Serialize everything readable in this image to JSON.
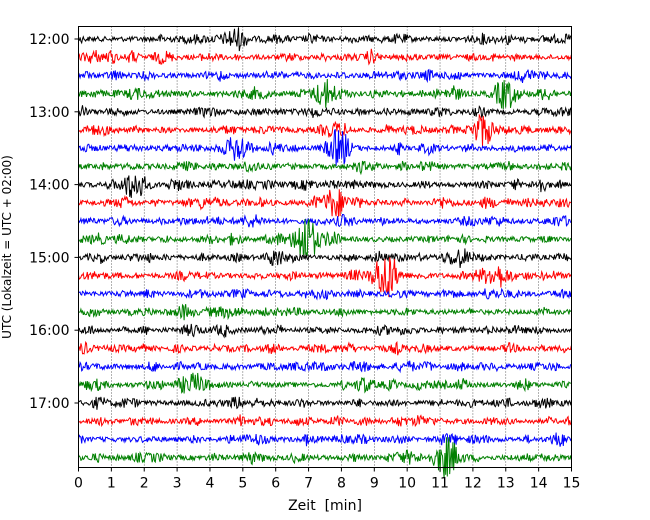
{
  "chart_data": {
    "type": "line",
    "subtype": "helicorder",
    "xlabel": "Zeit  [min]",
    "ylabel": "UTC (Lokalzeit = UTC + 02:00)",
    "xlim": [
      0,
      15
    ],
    "x_ticks": [
      0,
      1,
      2,
      3,
      4,
      5,
      6,
      7,
      8,
      9,
      10,
      11,
      12,
      13,
      14,
      15
    ],
    "x_tick_labels": [
      "0",
      "1",
      "2",
      "3",
      "4",
      "5",
      "6",
      "7",
      "8",
      "9",
      "10",
      "11",
      "12",
      "13",
      "14",
      "15"
    ],
    "y_tick_labels": [
      "12:00",
      "13:00",
      "14:00",
      "15:00",
      "16:00",
      "17:00"
    ],
    "row_minutes": 15,
    "grid": "vertical dotted at each minute",
    "trace_colors": [
      "#000000",
      "#ff0000",
      "#0000ff",
      "#008000"
    ],
    "rows": [
      {
        "start": "12:00",
        "color": "#000000",
        "events": [
          {
            "t": 4.8,
            "amp": 1.0
          }
        ]
      },
      {
        "start": "12:15",
        "color": "#ff0000",
        "events": []
      },
      {
        "start": "12:30",
        "color": "#0000ff",
        "events": []
      },
      {
        "start": "12:45",
        "color": "#008000",
        "events": [
          {
            "t": 7.5,
            "amp": 1.3
          },
          {
            "t": 13.0,
            "amp": 1.4
          }
        ]
      },
      {
        "start": "13:00",
        "color": "#000000",
        "events": []
      },
      {
        "start": "13:15",
        "color": "#ff0000",
        "events": [
          {
            "t": 12.3,
            "amp": 1.4
          }
        ]
      },
      {
        "start": "13:30",
        "color": "#0000ff",
        "events": [
          {
            "t": 4.8,
            "amp": 1.1
          },
          {
            "t": 7.9,
            "amp": 1.5
          }
        ]
      },
      {
        "start": "13:45",
        "color": "#008000",
        "events": []
      },
      {
        "start": "14:00",
        "color": "#000000",
        "events": [
          {
            "t": 1.7,
            "amp": 1.5
          }
        ]
      },
      {
        "start": "14:15",
        "color": "#ff0000",
        "events": [
          {
            "t": 7.8,
            "amp": 1.5
          }
        ]
      },
      {
        "start": "14:30",
        "color": "#0000ff",
        "events": []
      },
      {
        "start": "14:45",
        "color": "#008000",
        "events": [
          {
            "t": 6.9,
            "amp": 2.6
          }
        ]
      },
      {
        "start": "15:00",
        "color": "#000000",
        "events": [
          {
            "t": 11.6,
            "amp": 0.9
          }
        ]
      },
      {
        "start": "15:15",
        "color": "#ff0000",
        "events": [
          {
            "t": 9.3,
            "amp": 2.3
          },
          {
            "t": 12.6,
            "amp": 0.9
          }
        ]
      },
      {
        "start": "15:30",
        "color": "#0000ff",
        "events": []
      },
      {
        "start": "15:45",
        "color": "#008000",
        "events": []
      },
      {
        "start": "16:00",
        "color": "#000000",
        "events": []
      },
      {
        "start": "16:15",
        "color": "#ff0000",
        "events": []
      },
      {
        "start": "16:30",
        "color": "#0000ff",
        "events": []
      },
      {
        "start": "16:45",
        "color": "#008000",
        "events": [
          {
            "t": 3.5,
            "amp": 1.0
          }
        ]
      },
      {
        "start": "17:00",
        "color": "#000000",
        "events": []
      },
      {
        "start": "17:15",
        "color": "#ff0000",
        "events": []
      },
      {
        "start": "17:30",
        "color": "#0000ff",
        "events": []
      },
      {
        "start": "17:45",
        "color": "#008000",
        "events": [
          {
            "t": 11.2,
            "amp": 2.1
          }
        ]
      }
    ]
  }
}
